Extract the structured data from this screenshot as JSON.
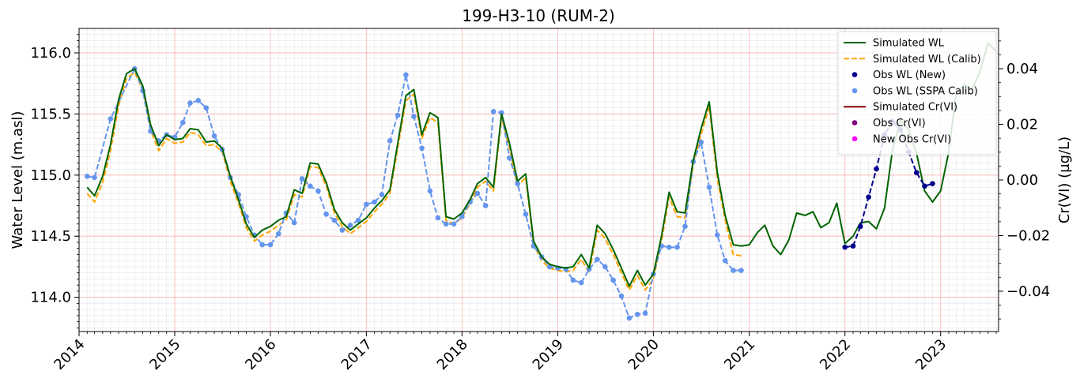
{
  "chart_data": {
    "type": "line",
    "title": "199-H3-10 (RUM-2)",
    "xlabel": "",
    "ylabel": "Water Level (m.asl)",
    "ylabel_right": "Cr(VI) (µg/L)",
    "xlim": [
      "2014-01-01",
      "2023-08-10"
    ],
    "ylim": [
      113.72,
      116.2
    ],
    "ylim_right": [
      -0.0545,
      0.0545
    ],
    "x_ticks": [
      "2014",
      "2015",
      "2016",
      "2017",
      "2018",
      "2019",
      "2020",
      "2021",
      "2022",
      "2023"
    ],
    "y_ticks": [
      "114.0",
      "114.5",
      "115.0",
      "115.5",
      "116.0"
    ],
    "y_ticks_right": [
      "−0.04",
      "−0.02",
      "0.00",
      "0.02",
      "0.04"
    ],
    "grid": true,
    "legend_position": "top-right",
    "colors": {
      "sim_wl": "#006400",
      "sim_wl_calib": "#ffa500",
      "obs_wl_new": "#00008b",
      "obs_wl_sspa": "#6495ed",
      "sim_cr": "#8b0000",
      "obs_cr": "#800080",
      "new_obs_cr": "#ff00ff"
    },
    "series": [
      {
        "name": "Simulated WL",
        "style": "solid-line",
        "x": [
          "2014-02-01",
          "2014-03-01",
          "2014-04-01",
          "2014-05-01",
          "2014-06-01",
          "2014-07-01",
          "2014-08-01",
          "2014-09-01",
          "2014-10-01",
          "2014-11-01",
          "2014-12-01",
          "2015-01-01",
          "2015-02-01",
          "2015-03-01",
          "2015-04-01",
          "2015-05-01",
          "2015-06-01",
          "2015-07-01",
          "2015-08-01",
          "2015-09-01",
          "2015-10-01",
          "2015-11-01",
          "2015-12-01",
          "2016-01-01",
          "2016-02-01",
          "2016-03-01",
          "2016-04-01",
          "2016-05-01",
          "2016-06-01",
          "2016-07-01",
          "2016-08-01",
          "2016-09-01",
          "2016-10-01",
          "2016-11-01",
          "2016-12-01",
          "2017-01-01",
          "2017-02-01",
          "2017-03-01",
          "2017-04-01",
          "2017-05-01",
          "2017-06-01",
          "2017-07-01",
          "2017-08-01",
          "2017-09-01",
          "2017-10-01",
          "2017-11-01",
          "2017-12-01",
          "2018-01-01",
          "2018-02-01",
          "2018-03-01",
          "2018-04-01",
          "2018-05-01",
          "2018-06-01",
          "2018-07-01",
          "2018-08-01",
          "2018-09-01",
          "2018-10-01",
          "2018-11-01",
          "2018-12-01",
          "2019-01-01",
          "2019-02-01",
          "2019-03-01",
          "2019-04-01",
          "2019-05-01",
          "2019-06-01",
          "2019-07-01",
          "2019-08-01",
          "2019-09-01",
          "2019-10-01",
          "2019-11-01",
          "2019-12-01",
          "2020-01-01",
          "2020-02-01",
          "2020-03-01",
          "2020-04-01",
          "2020-05-01",
          "2020-06-01",
          "2020-07-01",
          "2020-08-01",
          "2020-09-01",
          "2020-10-01",
          "2020-11-01",
          "2020-12-01",
          "2021-01-01",
          "2021-02-01",
          "2021-03-01",
          "2021-04-01",
          "2021-05-01",
          "2021-06-01",
          "2021-07-01",
          "2021-08-01",
          "2021-09-01",
          "2021-10-01",
          "2021-11-01",
          "2021-12-01",
          "2022-01-01",
          "2022-02-01",
          "2022-03-01",
          "2022-04-01",
          "2022-05-01",
          "2022-06-01",
          "2022-07-01",
          "2022-08-01",
          "2022-09-01",
          "2022-10-01",
          "2022-11-01",
          "2022-12-01",
          "2023-01-01",
          "2023-02-01",
          "2023-03-01",
          "2023-04-01",
          "2023-05-01",
          "2023-06-01",
          "2023-07-01",
          "2023-08-01"
        ],
        "values": [
          114.9,
          114.83,
          114.99,
          115.25,
          115.62,
          115.83,
          115.87,
          115.73,
          115.41,
          115.24,
          115.33,
          115.29,
          115.3,
          115.38,
          115.37,
          115.27,
          115.28,
          115.22,
          114.99,
          114.8,
          114.6,
          114.49,
          114.55,
          114.58,
          114.63,
          114.66,
          114.88,
          114.85,
          115.1,
          115.09,
          114.94,
          114.72,
          114.61,
          114.55,
          114.6,
          114.65,
          114.73,
          114.79,
          114.88,
          115.26,
          115.65,
          115.7,
          115.33,
          115.51,
          115.47,
          114.66,
          114.64,
          114.69,
          114.8,
          114.93,
          114.98,
          114.9,
          115.5,
          115.26,
          114.95,
          115.01,
          114.46,
          114.33,
          114.27,
          114.25,
          114.24,
          114.25,
          114.35,
          114.24,
          114.59,
          114.52,
          114.39,
          114.24,
          114.09,
          114.22,
          114.1,
          114.19,
          114.5,
          114.86,
          114.7,
          114.69,
          115.12,
          115.38,
          115.6,
          115.02,
          114.67,
          114.43,
          114.42,
          114.43,
          114.53,
          114.59,
          114.42,
          114.35,
          114.47,
          114.69,
          114.67,
          114.7,
          114.57,
          114.61,
          114.77,
          114.44,
          114.5,
          114.61,
          114.62,
          114.56,
          114.73,
          115.2,
          115.45,
          115.37,
          115.18,
          114.87,
          114.78,
          114.87,
          115.19,
          115.67,
          115.74,
          115.7,
          115.85,
          116.08,
          116.01
        ]
      },
      {
        "name": "Simulated WL (Calib)",
        "style": "dashed-line",
        "x": [
          "2014-02-01",
          "2014-03-01",
          "2014-04-01",
          "2014-05-01",
          "2014-06-01",
          "2014-07-01",
          "2014-08-01",
          "2014-09-01",
          "2014-10-01",
          "2014-11-01",
          "2014-12-01",
          "2015-01-01",
          "2015-02-01",
          "2015-03-01",
          "2015-04-01",
          "2015-05-01",
          "2015-06-01",
          "2015-07-01",
          "2015-08-01",
          "2015-09-01",
          "2015-10-01",
          "2015-11-01",
          "2015-12-01",
          "2016-01-01",
          "2016-02-01",
          "2016-03-01",
          "2016-04-01",
          "2016-05-01",
          "2016-06-01",
          "2016-07-01",
          "2016-08-01",
          "2016-09-01",
          "2016-10-01",
          "2016-11-01",
          "2016-12-01",
          "2017-01-01",
          "2017-02-01",
          "2017-03-01",
          "2017-04-01",
          "2017-05-01",
          "2017-06-01",
          "2017-07-01",
          "2017-08-01",
          "2017-09-01",
          "2017-10-01",
          "2017-11-01",
          "2017-12-01",
          "2018-01-01",
          "2018-02-01",
          "2018-03-01",
          "2018-04-01",
          "2018-05-01",
          "2018-06-01",
          "2018-07-01",
          "2018-08-01",
          "2018-09-01",
          "2018-10-01",
          "2018-11-01",
          "2018-12-01",
          "2019-01-01",
          "2019-02-01",
          "2019-03-01",
          "2019-04-01",
          "2019-05-01",
          "2019-06-01",
          "2019-07-01",
          "2019-08-01",
          "2019-09-01",
          "2019-10-01",
          "2019-11-01",
          "2019-12-01",
          "2020-01-01",
          "2020-02-01",
          "2020-03-01",
          "2020-04-01",
          "2020-05-01",
          "2020-06-01",
          "2020-07-01",
          "2020-08-01",
          "2020-09-01",
          "2020-10-01",
          "2020-11-01",
          "2020-12-01"
        ],
        "values": [
          114.85,
          114.78,
          114.94,
          115.2,
          115.57,
          115.79,
          115.84,
          115.7,
          115.37,
          115.2,
          115.3,
          115.26,
          115.27,
          115.35,
          115.33,
          115.24,
          115.25,
          115.19,
          114.95,
          114.77,
          114.57,
          114.46,
          114.51,
          114.54,
          114.59,
          114.63,
          114.84,
          114.82,
          115.07,
          115.06,
          114.91,
          114.69,
          114.58,
          114.52,
          114.57,
          114.62,
          114.7,
          114.76,
          114.85,
          115.22,
          115.61,
          115.66,
          115.3,
          115.47,
          115.43,
          114.63,
          114.6,
          114.65,
          114.77,
          114.9,
          114.95,
          114.87,
          115.47,
          115.22,
          114.91,
          114.98,
          114.43,
          114.3,
          114.24,
          114.22,
          114.21,
          114.22,
          114.31,
          114.2,
          114.55,
          114.48,
          114.35,
          114.2,
          114.06,
          114.18,
          114.06,
          114.15,
          114.46,
          114.82,
          114.66,
          114.65,
          115.08,
          115.33,
          115.56,
          114.97,
          114.63,
          114.35,
          114.34
        ]
      },
      {
        "name": "Obs WL (New)",
        "style": "dashed-line-with-markers",
        "x": [
          "2022-01-01",
          "2022-02-01",
          "2022-03-01",
          "2022-04-01",
          "2022-05-01",
          "2022-06-01",
          "2022-07-01",
          "2022-08-01",
          "2022-09-01",
          "2022-10-01",
          "2022-11-01",
          "2022-12-01"
        ],
        "values": [
          114.41,
          114.42,
          114.58,
          114.82,
          115.05,
          115.33,
          115.44,
          115.37,
          115.19,
          115.02,
          114.91,
          114.93
        ]
      },
      {
        "name": "Obs WL (SSPA Calib)",
        "style": "dashed-line-with-markers",
        "x": [
          "2014-02-01",
          "2014-03-01",
          "2014-05-01",
          "2014-08-01",
          "2014-09-01",
          "2014-10-01",
          "2014-11-01",
          "2014-12-01",
          "2015-01-01",
          "2015-02-01",
          "2015-03-01",
          "2015-04-01",
          "2015-05-01",
          "2015-06-01",
          "2015-07-01",
          "2015-08-01",
          "2015-09-01",
          "2015-10-01",
          "2015-11-01",
          "2015-12-01",
          "2016-01-01",
          "2016-02-01",
          "2016-03-01",
          "2016-04-01",
          "2016-05-01",
          "2016-06-01",
          "2016-07-01",
          "2016-08-01",
          "2016-09-01",
          "2016-10-01",
          "2016-11-01",
          "2016-12-01",
          "2017-01-01",
          "2017-02-01",
          "2017-03-01",
          "2017-04-01",
          "2017-05-01",
          "2017-06-01",
          "2017-07-01",
          "2017-08-01",
          "2017-09-01",
          "2017-10-01",
          "2017-11-01",
          "2017-12-01",
          "2018-01-01",
          "2018-02-01",
          "2018-03-01",
          "2018-04-01",
          "2018-05-01",
          "2018-06-01",
          "2018-07-01",
          "2018-08-01",
          "2018-09-01",
          "2018-10-01",
          "2018-11-01",
          "2018-12-01",
          "2019-01-01",
          "2019-02-01",
          "2019-03-01",
          "2019-04-01",
          "2019-05-01",
          "2019-06-01",
          "2019-07-01",
          "2019-08-01",
          "2019-09-01",
          "2019-10-01",
          "2019-11-01",
          "2019-12-01",
          "2020-01-01",
          "2020-02-01",
          "2020-03-01",
          "2020-04-01",
          "2020-05-01",
          "2020-06-01",
          "2020-07-01",
          "2020-08-01",
          "2020-09-01",
          "2020-10-01",
          "2020-11-01",
          "2020-12-01"
        ],
        "values": [
          114.99,
          114.98,
          115.46,
          115.87,
          115.69,
          115.36,
          115.28,
          115.33,
          115.31,
          115.43,
          115.59,
          115.61,
          115.55,
          115.32,
          115.21,
          114.98,
          114.84,
          114.66,
          114.51,
          114.43,
          114.43,
          114.52,
          114.69,
          114.61,
          114.97,
          114.91,
          114.87,
          114.68,
          114.63,
          114.55,
          114.59,
          114.63,
          114.76,
          114.78,
          114.84,
          115.28,
          115.49,
          115.82,
          115.48,
          115.22,
          114.87,
          114.65,
          114.6,
          114.6,
          114.66,
          114.78,
          114.85,
          114.75,
          115.52,
          115.51,
          115.14,
          114.93,
          114.68,
          114.42,
          114.33,
          114.25,
          114.24,
          114.23,
          114.14,
          114.12,
          114.23,
          114.31,
          114.25,
          114.14,
          114.01,
          113.83,
          113.86,
          113.87,
          114.19,
          114.42,
          114.41,
          114.41,
          114.58,
          115.11,
          115.27,
          114.9,
          114.51,
          114.3,
          114.22,
          114.22
        ]
      },
      {
        "name": "Simulated Cr(VI)",
        "style": "solid-line",
        "x": [],
        "values": []
      },
      {
        "name": "Obs Cr(VI)",
        "style": "marker",
        "x": [],
        "values": []
      },
      {
        "name": "New Obs Cr(VI)",
        "style": "marker",
        "x": [],
        "values": []
      }
    ]
  }
}
